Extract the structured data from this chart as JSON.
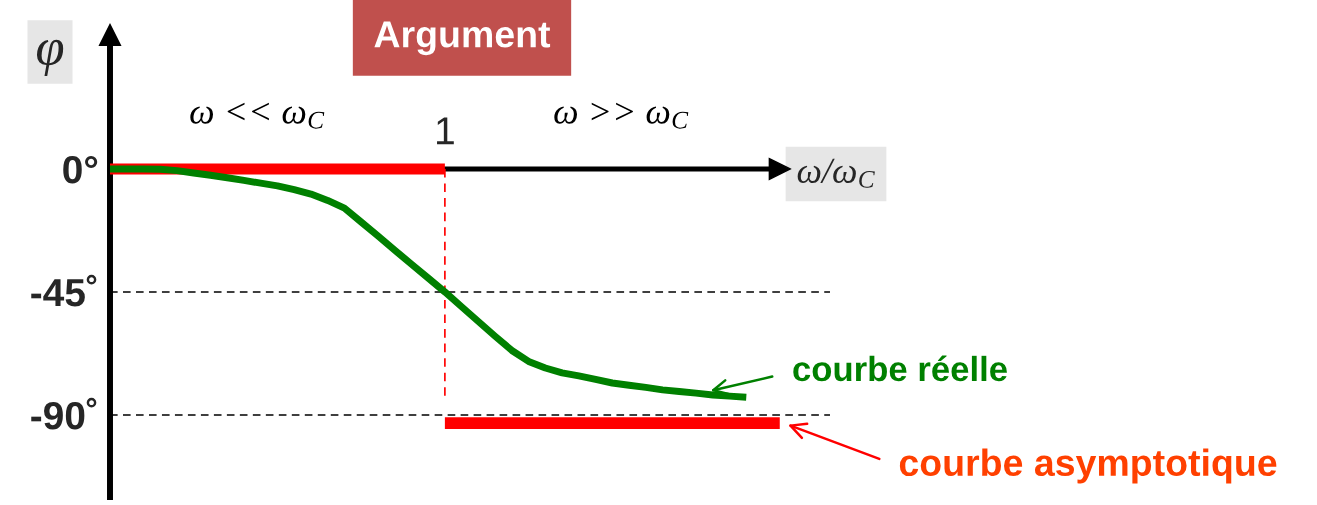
{
  "chart_data": {
    "type": "line",
    "title": "Argument",
    "xlabel": "ω/ω$_{C}$",
    "ylabel": "φ",
    "categories": [
      null,
      null,
      null,
      null,
      null,
      null,
      null,
      null,
      null,
      null,
      null,
      null,
      null,
      null,
      null,
      null,
      null,
      null,
      null,
      null,
      "1",
      null,
      null,
      null,
      null,
      null,
      null,
      null,
      null,
      null,
      null,
      null,
      null,
      null,
      null,
      null,
      null,
      null,
      null,
      null,
      null
    ],
    "series": [
      {
        "color": "#ff0000",
        "line_style": "solid",
        "values": [
          0,
          0,
          0,
          0,
          0,
          0,
          0,
          0,
          0,
          0,
          0,
          0,
          0,
          0,
          0,
          0,
          0,
          0,
          0,
          0,
          0,
          null,
          null,
          null,
          null,
          null,
          null,
          null,
          null,
          null,
          null,
          null,
          null,
          null,
          null,
          null,
          null,
          null,
          null,
          null,
          null
        ]
      },
      {
        "color": "#ff0000",
        "line_style": "solid",
        "values": [
          null,
          null,
          null,
          null,
          null,
          null,
          null,
          null,
          null,
          null,
          null,
          null,
          null,
          null,
          null,
          null,
          null,
          null,
          null,
          null,
          -93,
          -93,
          -93,
          -93,
          -93,
          -93,
          -93,
          -93,
          -93,
          -93,
          -93,
          -93,
          -93,
          -93,
          -93,
          -93,
          -93,
          -93,
          -93,
          -93,
          -93
        ]
      },
      {
        "color": "#ff0000",
        "line_style": "dashed",
        "x": [
          "1",
          "1"
        ],
        "values": [
          0,
          -83
        ]
      },
      {
        "color": "#008000",
        "line_style": "solid",
        "values": [
          0,
          0,
          0,
          -0.1,
          -0.6,
          -1.5,
          -2.3,
          -3.2,
          -4.2,
          -5.2,
          -6.2,
          -7.6,
          -9.2,
          -11.5,
          -14.3,
          -19.4,
          -24.5,
          -29.7,
          -34.8,
          -39.9,
          -45,
          -50.4,
          -55.8,
          -61.2,
          -66.4,
          -70.4,
          -72.8,
          -74.6,
          -75.7,
          -77.0,
          -78.3,
          -79.1,
          -79.9,
          -80.8,
          -81.4,
          -82.0,
          -82.7,
          -83.1,
          -83.5,
          null,
          null
        ]
      }
    ],
    "ylim": [
      -120,
      49
    ],
    "yticks": [
      {
        "value": 0,
        "label": "0°"
      },
      {
        "value": -45,
        "label": "-45˚"
      },
      {
        "value": -90,
        "label": "-90˚"
      }
    ],
    "ref_lines": [
      {
        "axis": "y",
        "value": -45,
        "color": "#000000",
        "line_style": "dashed"
      },
      {
        "axis": "y",
        "value": -90,
        "color": "#000000",
        "line_style": "dashed"
      }
    ],
    "annotations": [
      "ω << ω$_{C}$",
      "ω >> ω$_{C}$",
      "courbe réelle",
      "courbe asymptotique"
    ]
  }
}
